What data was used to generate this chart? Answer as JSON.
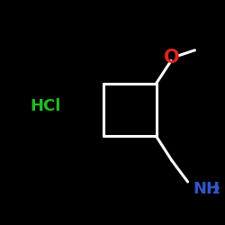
{
  "bg_color": "#000000",
  "bond_color": "#ffffff",
  "o_color": "#dd2222",
  "n_color": "#3355cc",
  "hcl_color": "#22bb22",
  "figsize": [
    2.5,
    2.5
  ],
  "dpi": 100,
  "o_label": "O",
  "hcl_label": "HCl",
  "bond_lw": 2.2,
  "font_size_o": 15,
  "font_size_nh2": 13,
  "font_size_hcl": 13,
  "font_size_2": 9
}
